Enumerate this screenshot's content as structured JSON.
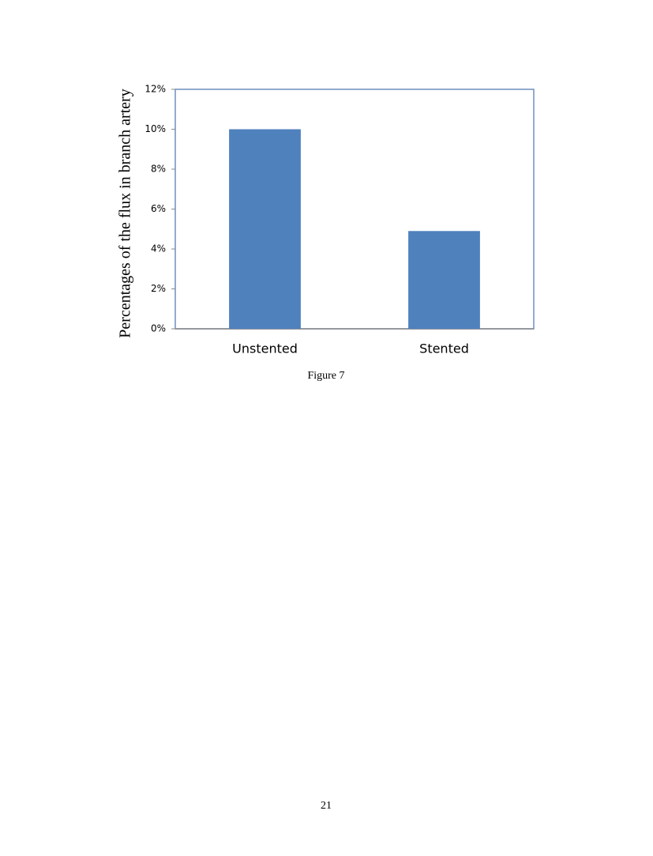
{
  "chart_data": {
    "type": "bar",
    "y_label": "Percentages of the flux in branch artery",
    "categories": [
      "Unstented",
      "Stented"
    ],
    "values": [
      10,
      4.9
    ],
    "color": "#4f81bd",
    "ylim": [
      0,
      12
    ],
    "yticks": [
      {
        "value": 0,
        "label": "0%"
      },
      {
        "value": 2,
        "label": "2%"
      },
      {
        "value": 4,
        "label": "4%"
      },
      {
        "value": 6,
        "label": "6%"
      },
      {
        "value": 8,
        "label": "8%"
      },
      {
        "value": 10,
        "label": "10%"
      },
      {
        "value": 12,
        "label": "12%"
      }
    ],
    "grid": false
  },
  "caption": "Figure 7",
  "page_number": "21"
}
